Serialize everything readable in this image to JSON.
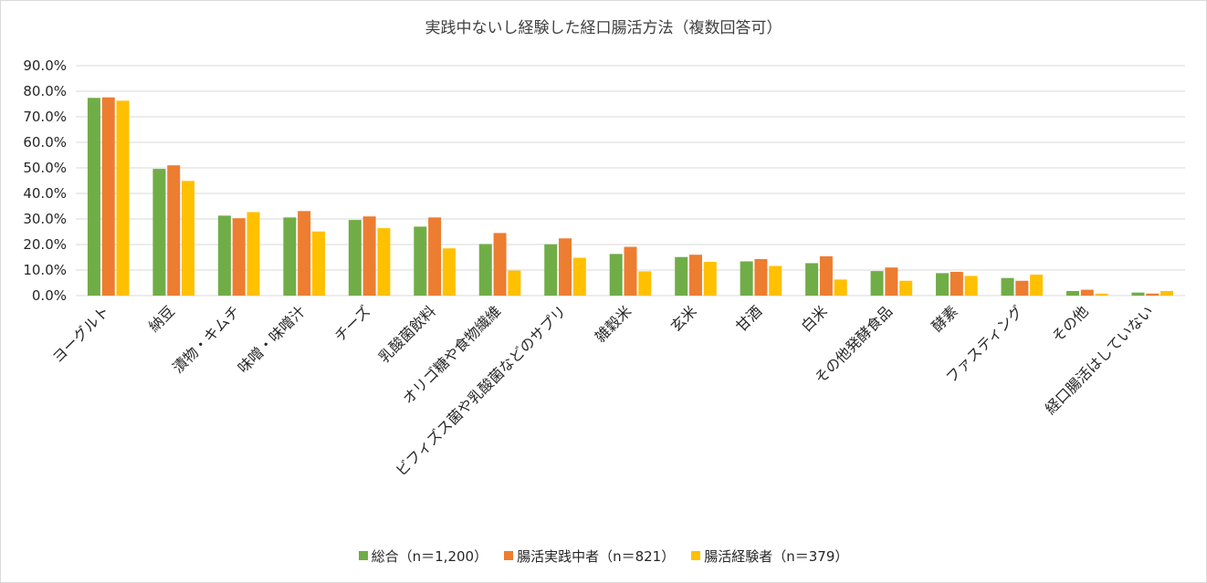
{
  "chart_data": {
    "type": "bar",
    "title": "実践中ないし経験した経口腸活方法（複数回答可）",
    "xlabel": "",
    "ylabel": "",
    "ylim": [
      0,
      90
    ],
    "y_ticks": [
      "0.0%",
      "10.0%",
      "20.0%",
      "30.0%",
      "40.0%",
      "50.0%",
      "60.0%",
      "70.0%",
      "80.0%",
      "90.0%"
    ],
    "grid": true,
    "legend_position": "bottom",
    "categories": [
      "ヨーグルト",
      "納豆",
      "漬物・キムチ",
      "味噌・味噌汁",
      "チーズ",
      "乳酸菌飲料",
      "オリゴ糖や食物繊維",
      "ビフィズス菌や乳酸菌などのサプリ",
      "雑穀米",
      "玄米",
      "甘酒",
      "白米",
      "その他発酵食品",
      "酵素",
      "ファスティング",
      "その他",
      "経口腸活はしていない"
    ],
    "series": [
      {
        "name": "総合（n＝1,200）",
        "color": "#70AD47",
        "values": [
          77.4,
          49.6,
          31.3,
          30.6,
          29.6,
          27.0,
          20.2,
          20.1,
          16.3,
          15.1,
          13.4,
          12.7,
          9.6,
          8.8,
          6.9,
          1.8,
          1.2
        ]
      },
      {
        "name": "腸活実践中者（n＝821）",
        "color": "#ED7D31",
        "values": [
          77.6,
          51.0,
          30.3,
          33.1,
          31.0,
          30.6,
          24.5,
          22.4,
          19.1,
          16.0,
          14.3,
          15.4,
          11.0,
          9.3,
          5.8,
          2.3,
          0.8
        ]
      },
      {
        "name": "腸活経験者（n＝379）",
        "color": "#FFC000",
        "values": [
          76.3,
          44.9,
          32.7,
          25.1,
          26.4,
          18.5,
          9.8,
          14.8,
          9.5,
          13.2,
          11.6,
          6.3,
          5.8,
          7.7,
          8.2,
          0.8,
          1.8
        ]
      }
    ]
  }
}
